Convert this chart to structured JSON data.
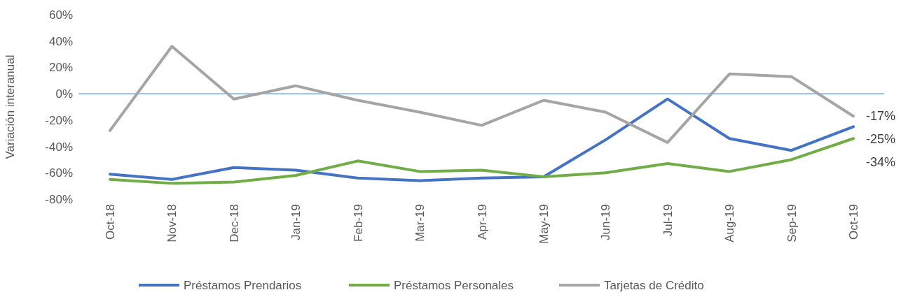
{
  "chart_data": {
    "type": "line",
    "ylabel": "Variación interanual",
    "categories": [
      "Oct-18",
      "Nov-18",
      "Dec-18",
      "Jan-19",
      "Feb-19",
      "Mar-19",
      "Apr-19",
      "May-19",
      "Jun-19",
      "Jul-19",
      "Aug-19",
      "Sep-19",
      "Oct-19"
    ],
    "series": [
      {
        "name": "Préstamos Prendarios",
        "color": "#4472c4",
        "values": [
          -61,
          -65,
          -56,
          -58,
          -64,
          -66,
          -64,
          -63,
          -35,
          -4,
          -34,
          -43,
          -25
        ]
      },
      {
        "name": "Préstamos Personales",
        "color": "#70ad47",
        "values": [
          -65,
          -68,
          -67,
          -62,
          -51,
          -59,
          -58,
          -63,
          -60,
          -53,
          -59,
          -50,
          -34
        ]
      },
      {
        "name": "Tarjetas de Crédito",
        "color": "#a5a5a5",
        "values": [
          -28,
          36,
          -4,
          6,
          -5,
          -14,
          -24,
          -5,
          -14,
          -37,
          15,
          13,
          -17
        ]
      }
    ],
    "ylim": [
      -80,
      60
    ],
    "yticks": [
      {
        "value": -80,
        "label": "-80%"
      },
      {
        "value": -60,
        "label": "-60%"
      },
      {
        "value": -40,
        "label": "-40%"
      },
      {
        "value": -20,
        "label": "-20%"
      },
      {
        "value": 0,
        "label": "0%"
      },
      {
        "value": 20,
        "label": "20%"
      },
      {
        "value": 40,
        "label": "40%"
      },
      {
        "value": 60,
        "label": "60%"
      }
    ],
    "ref_lines": [
      {
        "axis": "y",
        "value": 0,
        "color": "#5b9bd5"
      }
    ],
    "annotations": [
      {
        "text": "-17%",
        "x": "Oct-19",
        "y": -17
      },
      {
        "text": "-25%",
        "x": "Oct-19",
        "y": -25
      },
      {
        "text": "-34%",
        "x": "Oct-19",
        "y": -34
      }
    ],
    "grid": false,
    "legend": "bottom",
    "marker": "none",
    "line_style": "solid"
  }
}
